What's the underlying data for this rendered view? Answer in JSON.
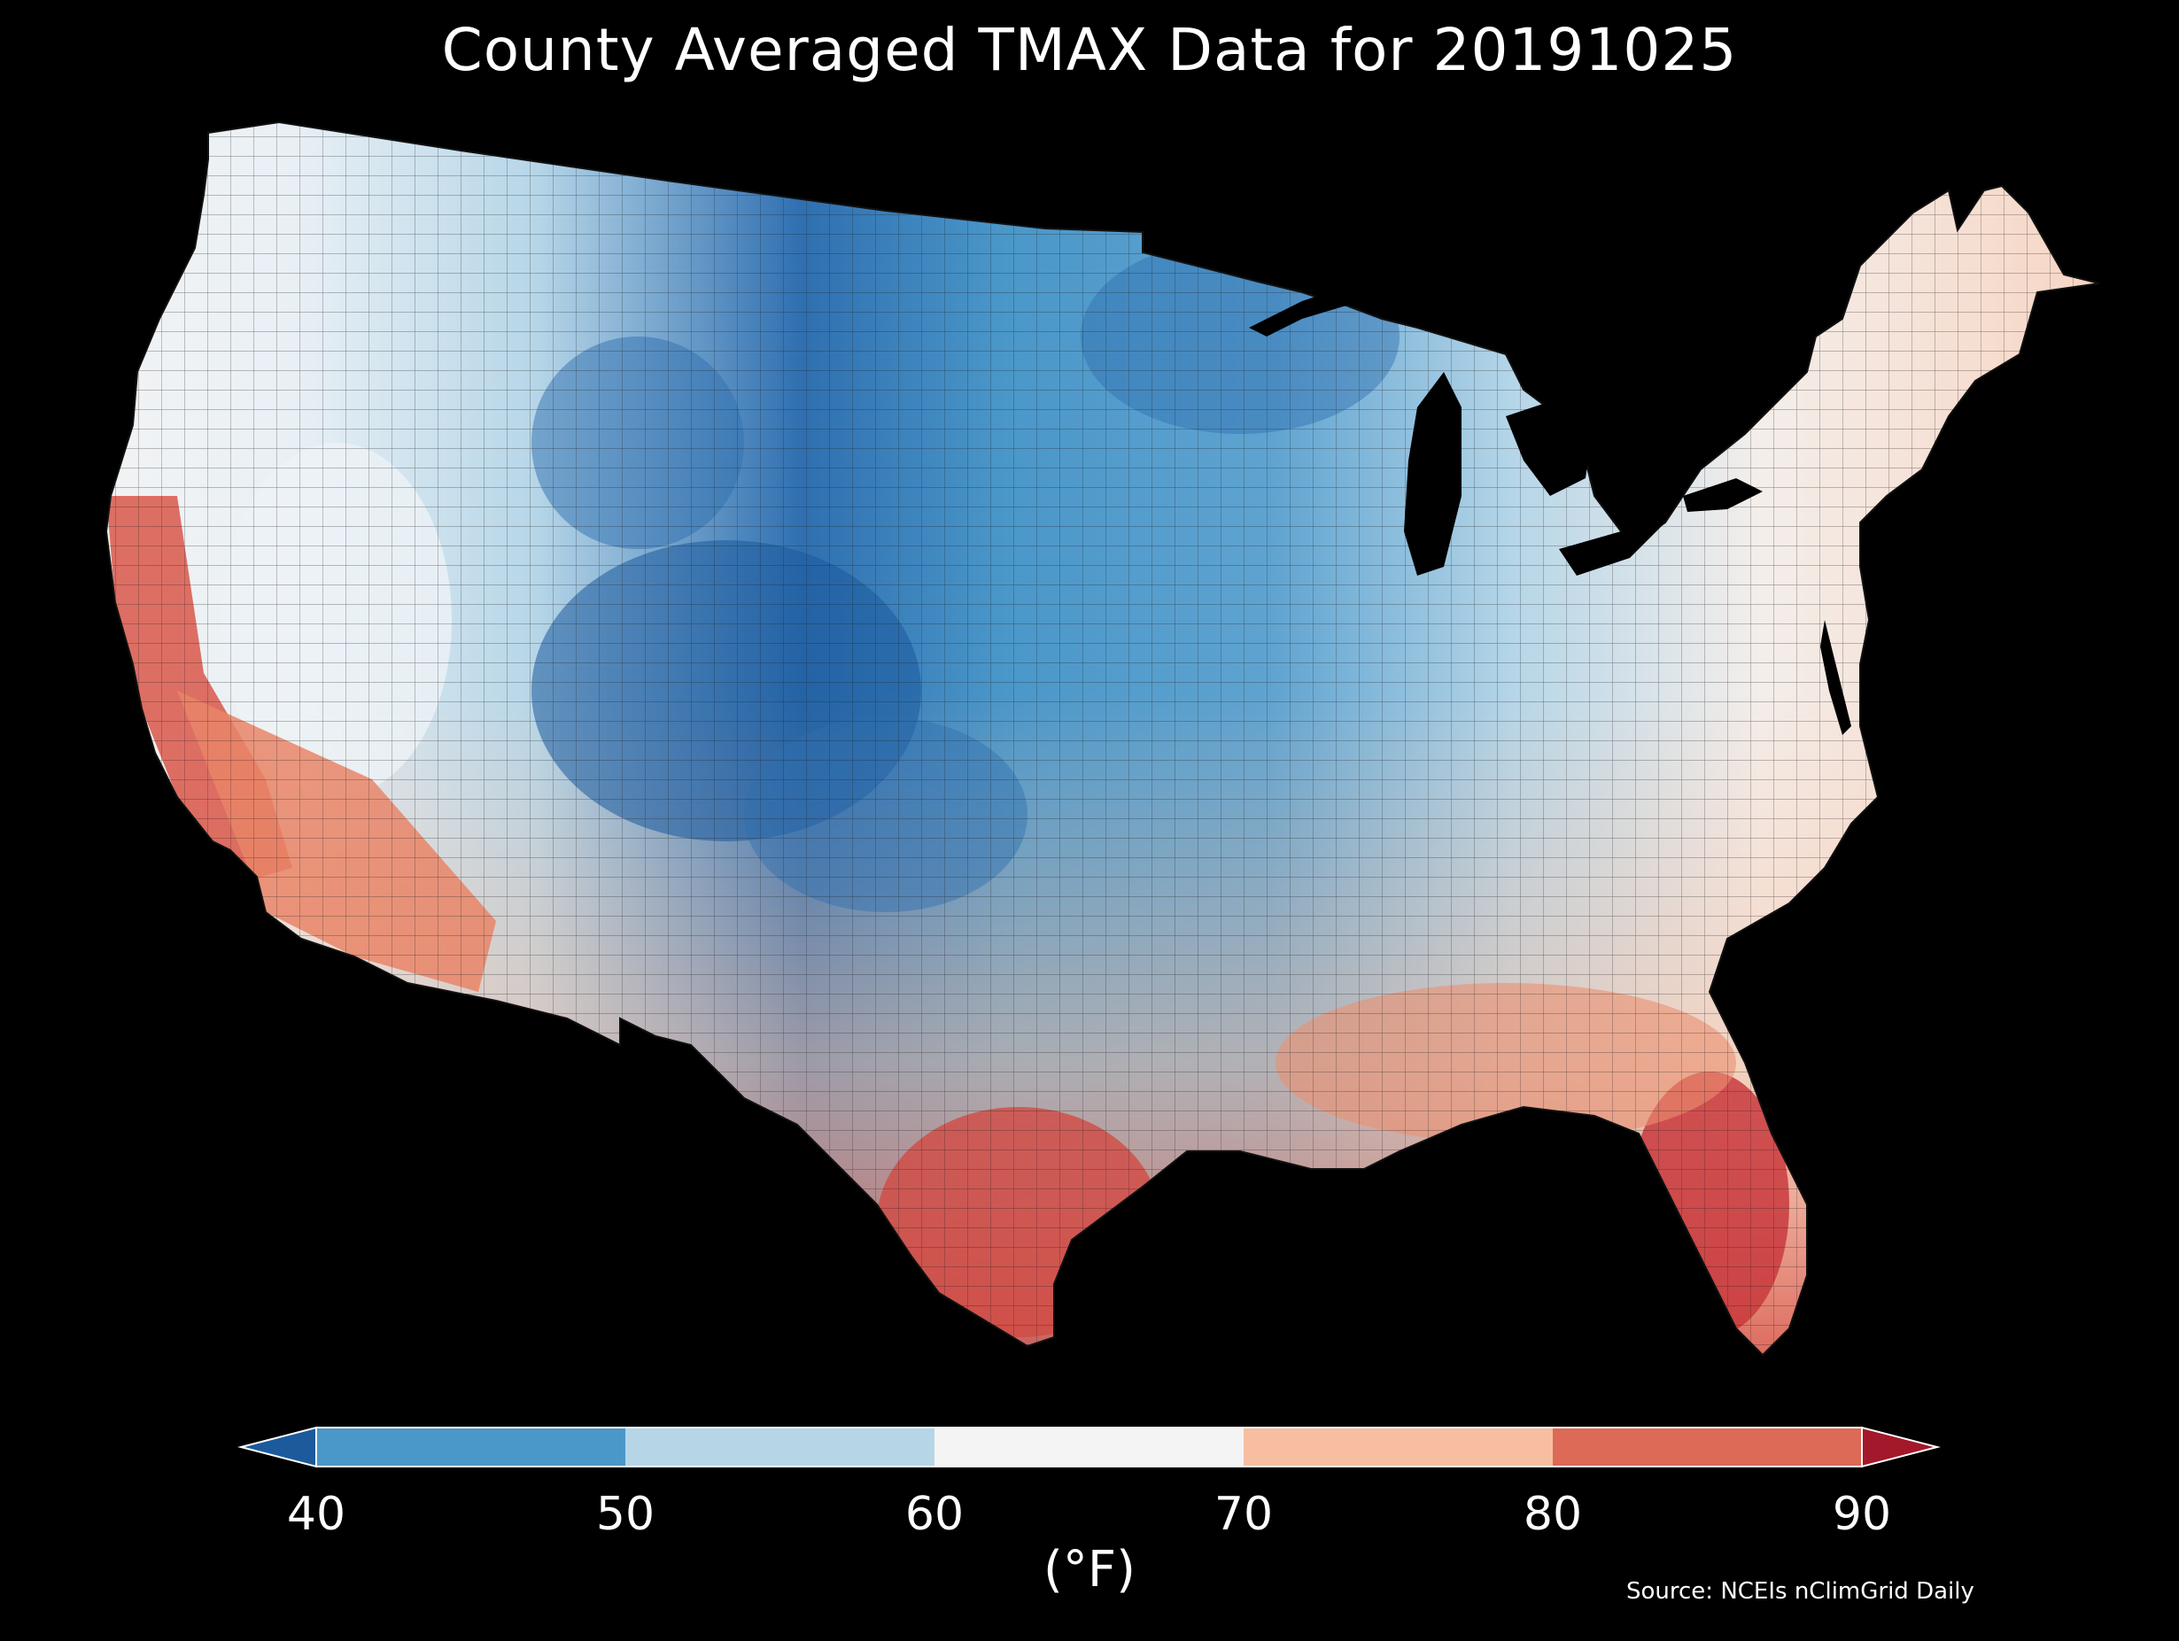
{
  "title": "County Averaged TMAX Data for 20191025",
  "colorbar": {
    "units": "(°F)",
    "ticks": [
      "40",
      "50",
      "60",
      "70",
      "80",
      "90"
    ],
    "bins": [
      {
        "range": "<40",
        "color": "#1c5a9c"
      },
      {
        "range": "40-50",
        "color": "#4a97c9"
      },
      {
        "range": "50-60",
        "color": "#b6d6e8"
      },
      {
        "range": "60-70",
        "color": "#f4f4f4"
      },
      {
        "range": "70-80",
        "color": "#f7bea1"
      },
      {
        "range": "80-90",
        "color": "#dc6a56"
      },
      {
        "range": ">90",
        "color": "#a3182a"
      }
    ]
  },
  "source": "Source: NCEIs nClimGrid Daily",
  "map_colors": {
    "background": "#000000",
    "county_lines": "#222222"
  }
}
